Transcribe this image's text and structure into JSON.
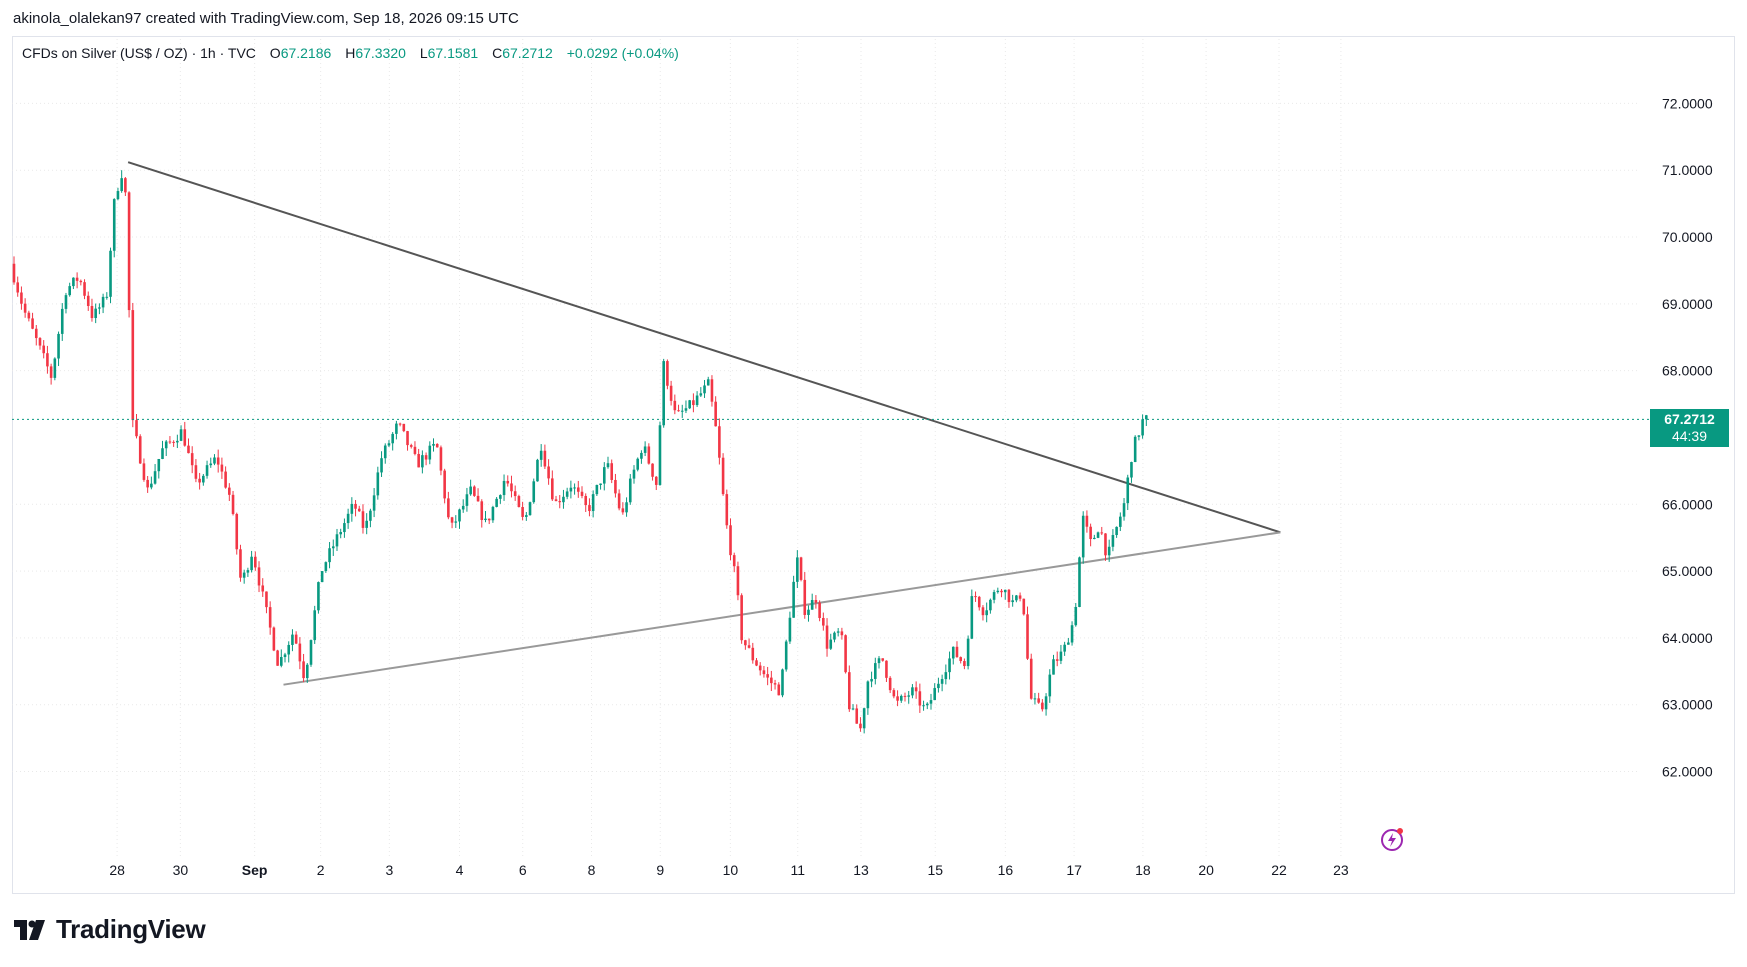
{
  "attribution": "akinola_olalekan97 created with TradingView.com, Sep 18, 2026 09:15 UTC",
  "legend": {
    "symbol": "CFDs on Silver (US$ / OZ) · 1h · TVC",
    "open_label": "O",
    "open": "67.2186",
    "high_label": "H",
    "high": "67.3320",
    "low_label": "L",
    "low": "67.1581",
    "close_label": "C",
    "close": "67.2712",
    "change": "+0.0292 (+0.04%)"
  },
  "last_price": {
    "value": "67.2712",
    "countdown": "44:39"
  },
  "brand": "TradingView",
  "colors": {
    "up": "#089981",
    "down": "#f23645",
    "trendline_upper": "#555555",
    "trendline_lower": "#999999",
    "grid": "#e9e9e9"
  },
  "chart_data": {
    "type": "candlestick",
    "interval": "1h",
    "y_axis": {
      "min": 61.2,
      "max": 72.5,
      "ticks": [
        "72.0000",
        "71.0000",
        "70.0000",
        "69.0000",
        "68.0000",
        "66.0000",
        "65.0000",
        "64.0000",
        "63.0000",
        "62.0000"
      ]
    },
    "x_ticks": [
      "28",
      "30",
      "Sep",
      "2",
      "3",
      "4",
      "6",
      "8",
      "9",
      "10",
      "11",
      "13",
      "15",
      "16",
      "17",
      "18",
      "20",
      "22",
      "23"
    ],
    "x_tick_index": [
      7.5,
      12.1,
      17.5,
      22.3,
      27.3,
      32.4,
      37,
      42,
      47,
      52.1,
      57,
      61.6,
      67,
      72.1,
      77.1,
      82.1,
      86.7,
      92,
      96.5
    ],
    "last_index": 82.4,
    "anchors": [
      [
        0,
        69.6
      ],
      [
        1,
        68.9
      ],
      [
        2,
        68.4
      ],
      [
        3,
        67.9
      ],
      [
        4,
        69.2
      ],
      [
        5,
        69.4
      ],
      [
        6,
        68.8
      ],
      [
        7,
        69.1
      ],
      [
        7.6,
        70.6
      ],
      [
        8.3,
        71.1
      ],
      [
        8.9,
        67.2
      ],
      [
        10,
        66.2
      ],
      [
        11,
        66.8
      ],
      [
        12.5,
        67.1
      ],
      [
        13.5,
        66.3
      ],
      [
        15,
        66.7
      ],
      [
        16,
        66.1
      ],
      [
        16.8,
        64.8
      ],
      [
        17.6,
        65.3
      ],
      [
        19.5,
        63.6
      ],
      [
        20.6,
        64.1
      ],
      [
        21.4,
        63.4
      ],
      [
        22.6,
        65.0
      ],
      [
        24,
        65.6
      ],
      [
        25,
        66.0
      ],
      [
        25.8,
        65.6
      ],
      [
        27,
        66.7
      ],
      [
        28.2,
        67.2
      ],
      [
        29.6,
        66.6
      ],
      [
        31,
        66.9
      ],
      [
        32,
        65.6
      ],
      [
        33.5,
        66.2
      ],
      [
        34.6,
        65.7
      ],
      [
        36,
        66.4
      ],
      [
        37.4,
        65.7
      ],
      [
        38.6,
        66.9
      ],
      [
        39.6,
        66.0
      ],
      [
        40.8,
        66.3
      ],
      [
        42,
        65.9
      ],
      [
        43.4,
        66.6
      ],
      [
        44.5,
        65.8
      ],
      [
        45.2,
        66.4
      ],
      [
        46,
        66.9
      ],
      [
        47,
        66.3
      ],
      [
        47.5,
        68.1
      ],
      [
        48.4,
        67.3
      ],
      [
        49.6,
        67.5
      ],
      [
        50.8,
        67.8
      ],
      [
        51.4,
        67.0
      ],
      [
        52,
        65.8
      ],
      [
        52.8,
        64.8
      ],
      [
        53.2,
        64.0
      ],
      [
        54,
        63.7
      ],
      [
        55,
        63.4
      ],
      [
        56,
        63.2
      ],
      [
        56.6,
        64.2
      ],
      [
        57.2,
        65.2
      ],
      [
        57.8,
        64.4
      ],
      [
        58.6,
        64.6
      ],
      [
        59.4,
        63.9
      ],
      [
        60.4,
        64.1
      ],
      [
        61,
        63.0
      ],
      [
        61.8,
        62.6
      ],
      [
        62.4,
        63.4
      ],
      [
        63.4,
        63.7
      ],
      [
        64.4,
        63.0
      ],
      [
        65.6,
        63.2
      ],
      [
        66.6,
        62.9
      ],
      [
        67.6,
        63.4
      ],
      [
        68.6,
        63.8
      ],
      [
        69.4,
        63.6
      ],
      [
        70,
        64.7
      ],
      [
        70.8,
        64.4
      ],
      [
        72,
        64.8
      ],
      [
        73,
        64.5
      ],
      [
        73.6,
        64.7
      ],
      [
        74.2,
        63.1
      ],
      [
        75,
        62.9
      ],
      [
        75.8,
        63.6
      ],
      [
        76.6,
        63.8
      ],
      [
        77.4,
        64.3
      ],
      [
        78,
        65.8
      ],
      [
        78.6,
        65.4
      ],
      [
        79.2,
        65.7
      ],
      [
        79.8,
        65.2
      ],
      [
        80.4,
        65.6
      ],
      [
        81,
        66.0
      ],
      [
        81.6,
        66.8
      ],
      [
        82.4,
        67.27
      ]
    ],
    "trendlines": [
      {
        "name": "upper",
        "points": [
          [
            8.3,
            71.12
          ],
          [
            92.1,
            65.58
          ]
        ]
      },
      {
        "name": "lower",
        "points": [
          [
            19.6,
            63.3
          ],
          [
            92.1,
            65.58
          ]
        ]
      }
    ]
  }
}
